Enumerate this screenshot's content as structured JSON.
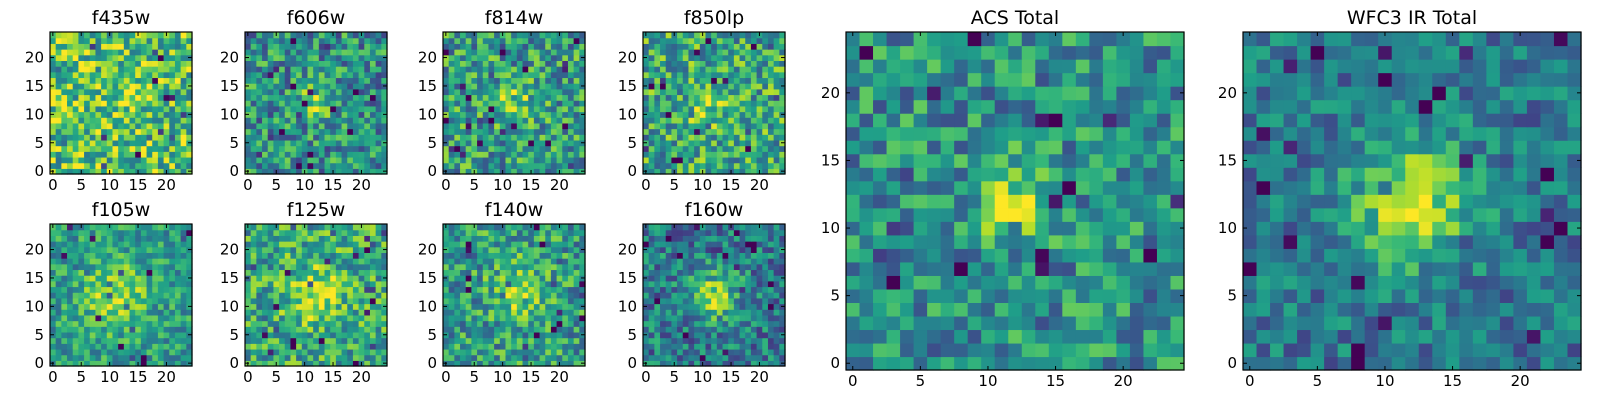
{
  "chart_data": [
    {
      "type": "heatmap",
      "title": "f435w",
      "grid_size": 25,
      "peak": [
        12,
        12
      ],
      "peak_strength": 0.05,
      "peak_width": 3.0,
      "noise": 0.32,
      "base": 0.72,
      "seed": 435,
      "xticks": [
        "0",
        "5",
        "10",
        "15",
        "20"
      ],
      "yticks": [
        "0",
        "5",
        "10",
        "15",
        "20"
      ],
      "xlim": [
        0,
        25
      ],
      "ylim": [
        0,
        25
      ]
    },
    {
      "type": "heatmap",
      "title": "f606w",
      "grid_size": 25,
      "peak": [
        12,
        12
      ],
      "peak_strength": 0.35,
      "peak_width": 2.0,
      "noise": 0.3,
      "base": 0.5,
      "seed": 606,
      "xticks": [
        "0",
        "5",
        "10",
        "15",
        "20"
      ],
      "yticks": [
        "0",
        "5",
        "10",
        "15",
        "20"
      ],
      "xlim": [
        0,
        25
      ],
      "ylim": [
        0,
        25
      ]
    },
    {
      "type": "heatmap",
      "title": "f814w",
      "grid_size": 25,
      "peak": [
        12,
        12
      ],
      "peak_strength": 0.35,
      "peak_width": 2.2,
      "noise": 0.3,
      "base": 0.55,
      "seed": 814,
      "xticks": [
        "0",
        "5",
        "10",
        "15",
        "20"
      ],
      "yticks": [
        "0",
        "5",
        "10",
        "15",
        "20"
      ],
      "xlim": [
        0,
        25
      ],
      "ylim": [
        0,
        25
      ]
    },
    {
      "type": "heatmap",
      "title": "f850lp",
      "grid_size": 25,
      "peak": [
        11,
        11
      ],
      "peak_strength": 0.2,
      "peak_width": 2.5,
      "noise": 0.3,
      "base": 0.6,
      "seed": 850,
      "xticks": [
        "0",
        "5",
        "10",
        "15",
        "20"
      ],
      "yticks": [
        "0",
        "5",
        "10",
        "15",
        "20"
      ],
      "xlim": [
        0,
        25
      ],
      "ylim": [
        0,
        25
      ]
    },
    {
      "type": "heatmap",
      "title": "f105w",
      "grid_size": 25,
      "peak": [
        11,
        12
      ],
      "peak_strength": 0.32,
      "peak_width": 4.0,
      "noise": 0.22,
      "base": 0.55,
      "seed": 105,
      "xticks": [
        "0",
        "5",
        "10",
        "15",
        "20"
      ],
      "yticks": [
        "0",
        "5",
        "10",
        "15",
        "20"
      ],
      "xlim": [
        0,
        25
      ],
      "ylim": [
        0,
        25
      ]
    },
    {
      "type": "heatmap",
      "title": "f125w",
      "grid_size": 25,
      "peak": [
        12,
        12
      ],
      "peak_strength": 0.3,
      "peak_width": 3.5,
      "noise": 0.28,
      "base": 0.6,
      "seed": 125,
      "xticks": [
        "0",
        "5",
        "10",
        "15",
        "20"
      ],
      "yticks": [
        "0",
        "5",
        "10",
        "15",
        "20"
      ],
      "xlim": [
        0,
        25
      ],
      "ylim": [
        0,
        25
      ]
    },
    {
      "type": "heatmap",
      "title": "f140w",
      "grid_size": 25,
      "peak": [
        13,
        13
      ],
      "peak_strength": 0.35,
      "peak_width": 3.0,
      "noise": 0.28,
      "base": 0.55,
      "seed": 140,
      "xticks": [
        "0",
        "5",
        "10",
        "15",
        "20"
      ],
      "yticks": [
        "0",
        "5",
        "10",
        "15",
        "20"
      ],
      "xlim": [
        0,
        25
      ],
      "ylim": [
        0,
        25
      ]
    },
    {
      "type": "heatmap",
      "title": "f160w",
      "grid_size": 25,
      "peak": [
        12,
        12
      ],
      "peak_strength": 0.4,
      "peak_width": 3.0,
      "noise": 0.25,
      "base": 0.42,
      "seed": 160,
      "xticks": [
        "0",
        "5",
        "10",
        "15",
        "20"
      ],
      "yticks": [
        "0",
        "5",
        "10",
        "15",
        "20"
      ],
      "xlim": [
        0,
        25
      ],
      "ylim": [
        0,
        25
      ]
    },
    {
      "type": "heatmap",
      "title": "ACS Total",
      "grid_size": 25,
      "peak": [
        12,
        12
      ],
      "peak_strength": 0.45,
      "peak_width": 1.8,
      "noise": 0.26,
      "base": 0.5,
      "seed": 1001,
      "xticks": [
        "0",
        "5",
        "10",
        "15",
        "20"
      ],
      "yticks": [
        "0",
        "5",
        "10",
        "15",
        "20"
      ],
      "xlim": [
        0,
        25
      ],
      "ylim": [
        0,
        25
      ]
    },
    {
      "type": "heatmap",
      "title": "WFC3 IR Total",
      "grid_size": 25,
      "peak": [
        12,
        12
      ],
      "peak_strength": 0.5,
      "peak_width": 3.2,
      "noise": 0.2,
      "base": 0.4,
      "seed": 1002,
      "xticks": [
        "0",
        "5",
        "10",
        "15",
        "20"
      ],
      "yticks": [
        "0",
        "5",
        "10",
        "15",
        "20"
      ],
      "xlim": [
        0,
        25
      ],
      "ylim": [
        0,
        25
      ]
    }
  ],
  "colormap": [
    "#440154",
    "#482878",
    "#3e4989",
    "#31688e",
    "#26828e",
    "#1f9e89",
    "#35b779",
    "#6ece58",
    "#b5de2b",
    "#fde725"
  ]
}
